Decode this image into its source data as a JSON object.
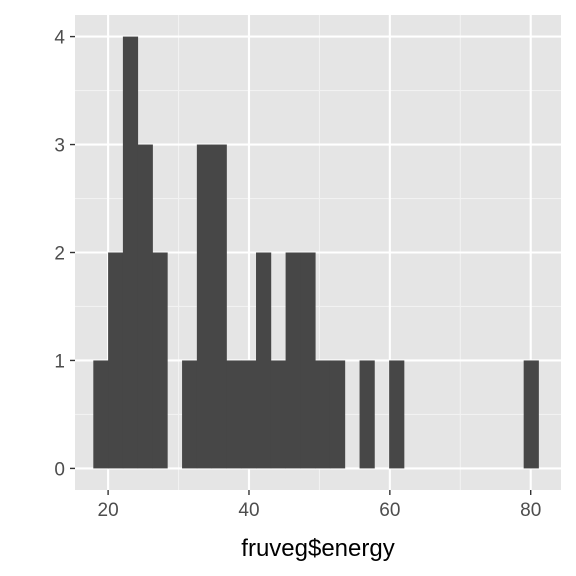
{
  "chart_data": {
    "type": "bar",
    "subtype": "histogram",
    "xlabel": "fruveg$energy",
    "ylabel": "",
    "xlim": [
      15.3,
      84.3
    ],
    "ylim": [
      -0.2,
      4.2
    ],
    "bin_width": 2.1,
    "x_ticks": [
      20,
      40,
      60,
      80
    ],
    "y_ticks": [
      0,
      1,
      2,
      3,
      4
    ],
    "bins": [
      {
        "x0": 17.9,
        "x1": 20.0,
        "count": 1
      },
      {
        "x0": 20.0,
        "x1": 22.1,
        "count": 2
      },
      {
        "x0": 22.1,
        "x1": 24.2,
        "count": 4
      },
      {
        "x0": 24.2,
        "x1": 26.3,
        "count": 3
      },
      {
        "x0": 26.3,
        "x1": 28.4,
        "count": 2
      },
      {
        "x0": 30.5,
        "x1": 32.6,
        "count": 1
      },
      {
        "x0": 32.6,
        "x1": 34.7,
        "count": 3
      },
      {
        "x0": 34.7,
        "x1": 36.8,
        "count": 3
      },
      {
        "x0": 36.8,
        "x1": 38.9,
        "count": 1
      },
      {
        "x0": 38.9,
        "x1": 41.0,
        "count": 1
      },
      {
        "x0": 41.0,
        "x1": 43.1,
        "count": 2
      },
      {
        "x0": 43.1,
        "x1": 45.2,
        "count": 1
      },
      {
        "x0": 45.2,
        "x1": 47.3,
        "count": 2
      },
      {
        "x0": 47.3,
        "x1": 49.4,
        "count": 2
      },
      {
        "x0": 49.4,
        "x1": 51.5,
        "count": 1
      },
      {
        "x0": 51.5,
        "x1": 53.6,
        "count": 1
      },
      {
        "x0": 55.7,
        "x1": 57.8,
        "count": 1
      },
      {
        "x0": 59.9,
        "x1": 62.0,
        "count": 1
      },
      {
        "x0": 79.0,
        "x1": 81.1,
        "count": 1
      }
    ],
    "grid": true,
    "colors": {
      "panel_background": "#e5e5e5",
      "grid_major": "#ffffff",
      "grid_minor": "#f2f2f2",
      "bar_fill": "#474747",
      "tick_mark": "#333333",
      "tick_label": "#4d4d4d",
      "axis_title": "#000000"
    }
  }
}
